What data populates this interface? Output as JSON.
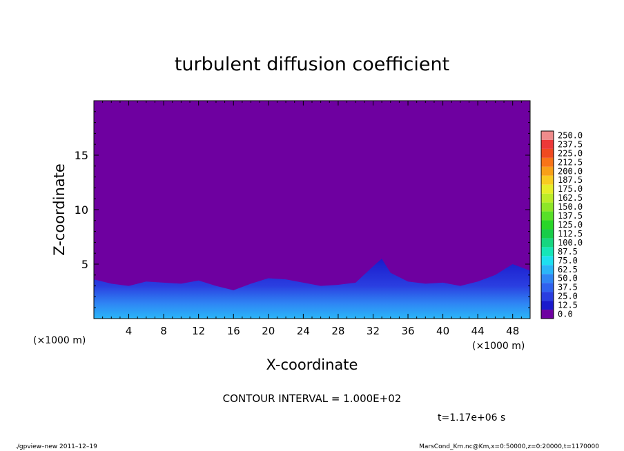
{
  "chart_data": {
    "type": "heatmap",
    "title": "turbulent diffusion coefficient",
    "xlabel": "X-coordinate",
    "ylabel": "Z-coordinate",
    "xunit": "(×1000 m)",
    "yunit": "(×1000 m)",
    "xlim": [
      0,
      50
    ],
    "ylim": [
      0,
      20
    ],
    "xticks": [
      "4",
      "8",
      "12",
      "16",
      "20",
      "24",
      "28",
      "32",
      "36",
      "40",
      "44",
      "48"
    ],
    "yticks": [
      "5",
      "10",
      "15"
    ],
    "colorbar": {
      "levels": [
        "0.0",
        "12.5",
        "25.0",
        "37.5",
        "50.0",
        "62.5",
        "75.0",
        "87.5",
        "100.0",
        "112.5",
        "125.0",
        "137.5",
        "150.0",
        "162.5",
        "175.0",
        "187.5",
        "200.0",
        "212.5",
        "225.0",
        "237.5",
        "250.0"
      ],
      "colors": [
        "#6e00a0",
        "#1a1acc",
        "#2a3ee0",
        "#2f62ee",
        "#2f86f4",
        "#2ab6f8",
        "#1ee0f0",
        "#16e6b8",
        "#16d680",
        "#18cc48",
        "#28d628",
        "#58e028",
        "#8ee628",
        "#bcec28",
        "#e6ee28",
        "#f8cc20",
        "#f8a018",
        "#f87418",
        "#f04a20",
        "#ec3838",
        "#f08c8c"
      ]
    },
    "background_level": "0.0",
    "turbulent_layer_top_km": [
      [
        0,
        3.6
      ],
      [
        2,
        3.2
      ],
      [
        4,
        3.0
      ],
      [
        6,
        3.4
      ],
      [
        8,
        3.3
      ],
      [
        10,
        3.2
      ],
      [
        12,
        3.5
      ],
      [
        14,
        3.0
      ],
      [
        16,
        2.6
      ],
      [
        18,
        3.2
      ],
      [
        20,
        3.7
      ],
      [
        22,
        3.6
      ],
      [
        24,
        3.3
      ],
      [
        26,
        3.0
      ],
      [
        28,
        3.1
      ],
      [
        30,
        3.3
      ],
      [
        32,
        4.8
      ],
      [
        33,
        5.5
      ],
      [
        34,
        4.2
      ],
      [
        36,
        3.4
      ],
      [
        38,
        3.2
      ],
      [
        40,
        3.3
      ],
      [
        42,
        3.0
      ],
      [
        44,
        3.4
      ],
      [
        46,
        4.0
      ],
      [
        48,
        5.0
      ],
      [
        50,
        4.4
      ]
    ]
  },
  "annotations": {
    "contour_interval": "CONTOUR INTERVAL = 1.000E+02",
    "time": "t=1.17e+06 s",
    "footer_left": "./gpview–new   2011–12–19",
    "footer_right": "MarsCond_Km.nc@Km,x=0:50000,z=0:20000,t=1170000"
  }
}
